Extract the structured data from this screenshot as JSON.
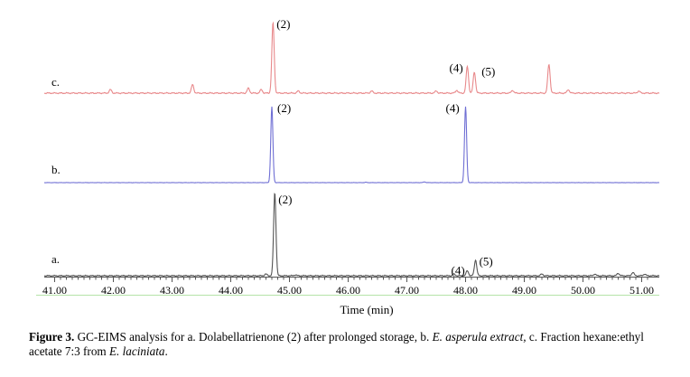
{
  "chart_data": {
    "type": "line",
    "xlabel": "Time (min)",
    "ylabel": "",
    "xlim": [
      40.8,
      51.3
    ],
    "x_ticks": [
      "41.00",
      "42.00",
      "43.00",
      "44.00",
      "45.00",
      "46.00",
      "47.00",
      "48.00",
      "49.00",
      "50.00",
      "51.00"
    ],
    "grid": false,
    "colors": {
      "c": "#e8898b",
      "b": "#6f6fd4",
      "a": "#555555",
      "axis": "#555555",
      "baseline": "#b5e3a8"
    },
    "series": [
      {
        "name": "c.",
        "peaks": [
          {
            "t": 41.95,
            "h": 0.05
          },
          {
            "t": 43.35,
            "h": 0.12
          },
          {
            "t": 44.3,
            "h": 0.07
          },
          {
            "t": 44.52,
            "h": 0.05
          },
          {
            "t": 44.72,
            "h": 1.0
          },
          {
            "t": 45.15,
            "h": 0.03
          },
          {
            "t": 46.4,
            "h": 0.03
          },
          {
            "t": 47.5,
            "h": 0.03
          },
          {
            "t": 47.85,
            "h": 0.04
          },
          {
            "t": 48.03,
            "h": 0.38
          },
          {
            "t": 48.15,
            "h": 0.3
          },
          {
            "t": 48.8,
            "h": 0.04
          },
          {
            "t": 49.42,
            "h": 0.41
          },
          {
            "t": 49.75,
            "h": 0.05
          },
          {
            "t": 50.95,
            "h": 0.03
          }
        ],
        "labels": [
          {
            "t": 44.72,
            "text": "(2)"
          },
          {
            "t": 48.03,
            "text": "(4)"
          },
          {
            "t": 48.15,
            "text": "(5)"
          }
        ]
      },
      {
        "name": "b.",
        "peaks": [
          {
            "t": 44.7,
            "h": 1.0
          },
          {
            "t": 46.3,
            "h": 0.005
          },
          {
            "t": 47.3,
            "h": 0.01
          },
          {
            "t": 48.0,
            "h": 1.0
          }
        ],
        "labels": [
          {
            "t": 44.7,
            "text": "(2)"
          },
          {
            "t": 48.0,
            "text": "(4)"
          }
        ]
      },
      {
        "name": "a.",
        "peaks": [
          {
            "t": 44.6,
            "h": 0.02
          },
          {
            "t": 44.75,
            "h": 1.0
          },
          {
            "t": 45.1,
            "h": 0.01
          },
          {
            "t": 47.8,
            "h": 0.02
          },
          {
            "t": 48.03,
            "h": 0.06
          },
          {
            "t": 48.17,
            "h": 0.19
          },
          {
            "t": 49.3,
            "h": 0.02
          },
          {
            "t": 50.2,
            "h": 0.02
          },
          {
            "t": 50.6,
            "h": 0.03
          },
          {
            "t": 50.85,
            "h": 0.04
          },
          {
            "t": 51.05,
            "h": 0.02
          }
        ],
        "labels": [
          {
            "t": 44.75,
            "text": "(2)"
          },
          {
            "t": 48.03,
            "text": "(4)"
          },
          {
            "t": 48.17,
            "text": "(5)"
          }
        ]
      }
    ]
  },
  "caption": {
    "lead": "Figure 3.",
    "p1": " GC-EIMS analysis for a. Dolabellatrienone (2) after prolonged storage, b. ",
    "i1": "E. asperula extract,",
    "p2": " c. Fraction hexane:ethyl acetate 7:3 from ",
    "i2": "E. laciniata",
    "p3": "."
  }
}
